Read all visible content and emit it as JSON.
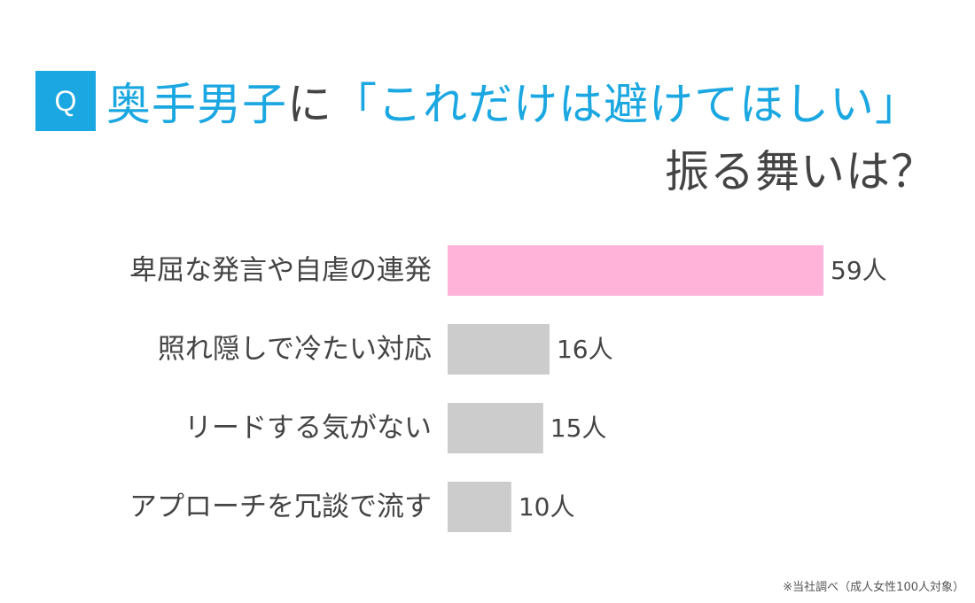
{
  "header": {
    "badge_label": "Q",
    "title_line1": [
      {
        "text": "奥手男子",
        "color": "#1ba7e1"
      },
      {
        "text": "に",
        "color": "#444444"
      },
      {
        "text": "「これだけは避けてほしい」",
        "color": "#1ba7e1"
      }
    ],
    "title_line2": "振る舞いは？"
  },
  "colors": {
    "accent": "#1ba7e1",
    "highlight_bar": "#ffb3d9",
    "normal_bar": "#cccccc",
    "text": "#444444"
  },
  "chart_data": {
    "type": "bar",
    "orientation": "horizontal",
    "categories": [
      "卑屈な発言や自虐の連発",
      "照れ隠しで冷たい対応",
      "リードする気がない",
      "アプローチを冗談で流す"
    ],
    "values": [
      59,
      16,
      15,
      10
    ],
    "value_labels": [
      "59人",
      "16人",
      "15人",
      "10人"
    ],
    "highlight_index": 0,
    "unit": "人",
    "xlim": [
      0,
      59
    ],
    "grid": false
  },
  "footnote": "※当社調べ（成人女性100人対象）"
}
